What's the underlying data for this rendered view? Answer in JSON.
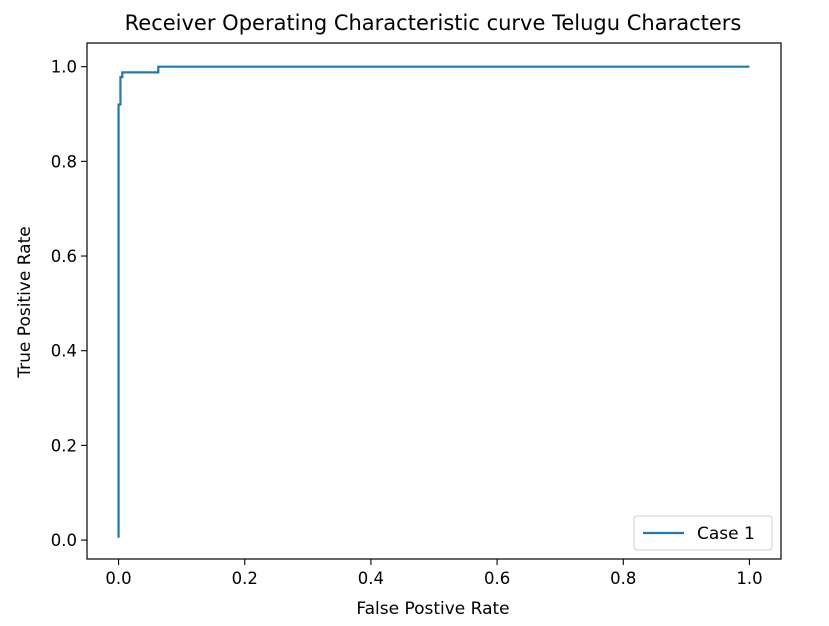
{
  "chart_data": {
    "type": "line",
    "title": "Receiver Operating Characteristic curve Telugu Characters",
    "xlabel": "False Postive Rate",
    "ylabel": "True Positive Rate",
    "xlim": [
      -0.05,
      1.05
    ],
    "ylim": [
      -0.04,
      1.05
    ],
    "xticks": [
      0.0,
      0.2,
      0.4,
      0.6,
      0.8,
      1.0
    ],
    "xtick_labels": [
      "0.0",
      "0.2",
      "0.4",
      "0.6",
      "0.8",
      "1.0"
    ],
    "yticks": [
      0.0,
      0.2,
      0.4,
      0.6,
      0.8,
      1.0
    ],
    "ytick_labels": [
      "0.0",
      "0.2",
      "0.4",
      "0.6",
      "0.8",
      "1.0"
    ],
    "grid": false,
    "legend_position": "bottom-right",
    "series": [
      {
        "name": "Case 1",
        "color": "#1f77b4",
        "x": [
          0.0,
          0.0,
          0.003,
          0.003,
          0.006,
          0.006,
          0.063,
          0.063,
          1.0
        ],
        "y": [
          0.005,
          0.92,
          0.92,
          0.978,
          0.978,
          0.988,
          0.988,
          1.0,
          1.0
        ]
      }
    ]
  }
}
